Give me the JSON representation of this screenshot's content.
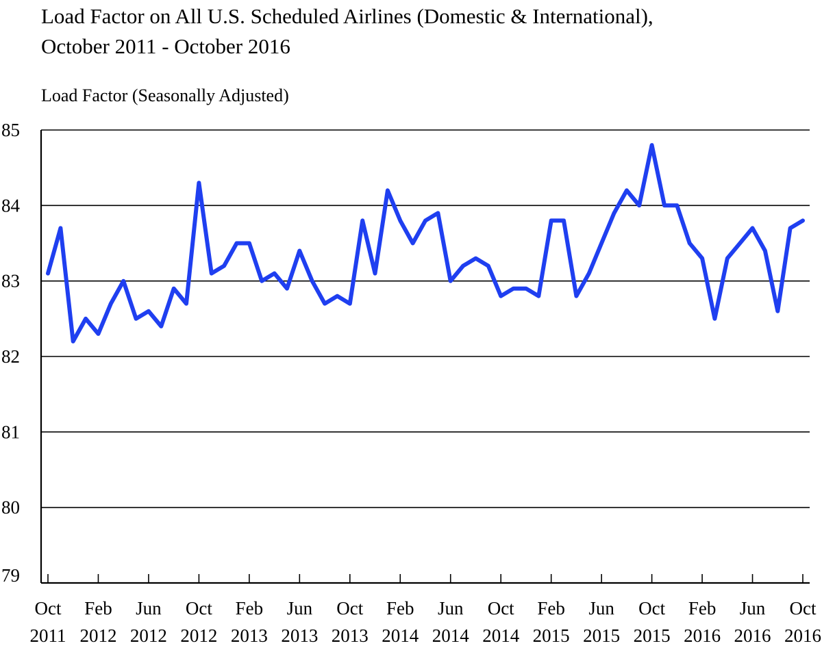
{
  "chart_data": {
    "type": "line",
    "title_line1": "Load Factor on All U.S. Scheduled Airlines (Domestic & International),",
    "title_line2": "October 2011 - October 2016",
    "ylabel": "Load Factor (Seasonally Adjusted)",
    "xlabel": "",
    "ylim": [
      79,
      85
    ],
    "yticks": [
      "79",
      "80",
      "81",
      "82",
      "83",
      "84",
      "85"
    ],
    "x_tick_labels": [
      {
        "month": "Oct",
        "year": "2011",
        "index": 0
      },
      {
        "month": "Feb",
        "year": "2012",
        "index": 4
      },
      {
        "month": "Jun",
        "year": "2012",
        "index": 8
      },
      {
        "month": "Oct",
        "year": "2012",
        "index": 12
      },
      {
        "month": "Feb",
        "year": "2013",
        "index": 16
      },
      {
        "month": "Jun",
        "year": "2013",
        "index": 20
      },
      {
        "month": "Oct",
        "year": "2013",
        "index": 24
      },
      {
        "month": "Feb",
        "year": "2014",
        "index": 28
      },
      {
        "month": "Jun",
        "year": "2014",
        "index": 32
      },
      {
        "month": "Oct",
        "year": "2014",
        "index": 36
      },
      {
        "month": "Feb",
        "year": "2015",
        "index": 40
      },
      {
        "month": "Jun",
        "year": "2015",
        "index": 44
      },
      {
        "month": "Oct",
        "year": "2015",
        "index": 48
      },
      {
        "month": "Feb",
        "year": "2016",
        "index": 52
      },
      {
        "month": "Jun",
        "year": "2016",
        "index": 56
      },
      {
        "month": "Oct",
        "year": "2016",
        "index": 60
      }
    ],
    "series": [
      {
        "name": "Load Factor",
        "color": "#1f3ff0",
        "values": [
          83.1,
          83.7,
          82.2,
          82.5,
          82.3,
          82.7,
          83.0,
          82.5,
          82.6,
          82.4,
          82.9,
          82.7,
          84.3,
          83.1,
          83.2,
          83.5,
          83.5,
          83.0,
          83.1,
          82.9,
          83.4,
          83.0,
          82.7,
          82.8,
          82.7,
          83.8,
          83.1,
          84.2,
          83.8,
          83.5,
          83.8,
          83.9,
          83.0,
          83.2,
          83.3,
          83.2,
          82.8,
          82.9,
          82.9,
          82.8,
          83.8,
          83.8,
          82.8,
          83.1,
          83.5,
          83.9,
          84.2,
          84.0,
          84.8,
          84.0,
          84.0,
          83.5,
          83.3,
          82.5,
          83.3,
          83.5,
          83.7,
          83.4,
          82.6,
          83.7,
          83.8
        ]
      }
    ],
    "grid": "horizontal"
  }
}
